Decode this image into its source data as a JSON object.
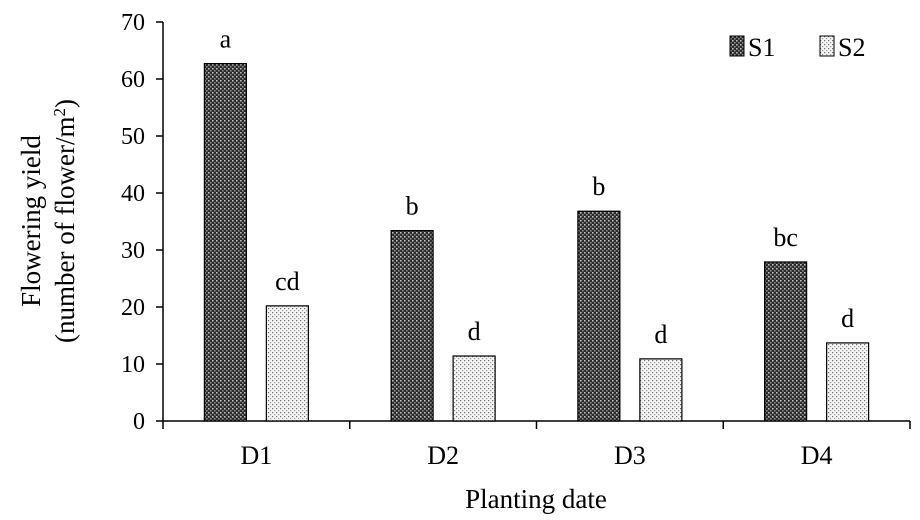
{
  "chart_data": {
    "type": "bar",
    "categories": [
      "D1",
      "D2",
      "D3",
      "D4"
    ],
    "series": [
      {
        "name": "S1",
        "values": [
          62.7,
          33.4,
          36.8,
          27.9
        ],
        "labels": [
          "a",
          "b",
          "b",
          "bc"
        ],
        "pattern": "dense-dark"
      },
      {
        "name": "S2",
        "values": [
          20.2,
          11.4,
          10.9,
          13.7
        ],
        "labels": [
          "cd",
          "d",
          "d",
          "d"
        ],
        "pattern": "light-dotted"
      }
    ],
    "xlabel": "Planting date",
    "ylabel_line1": "Flowering yield",
    "ylabel_line2_prefix": "(number of  flower/m",
    "ylabel_line2_sup": "2",
    "ylabel_line2_suffix": ")",
    "ylim": [
      0,
      70
    ],
    "yticks": [
      "0",
      "10",
      "20",
      "30",
      "40",
      "50",
      "60",
      "70"
    ],
    "legend_position": "top-right",
    "grid": false
  }
}
